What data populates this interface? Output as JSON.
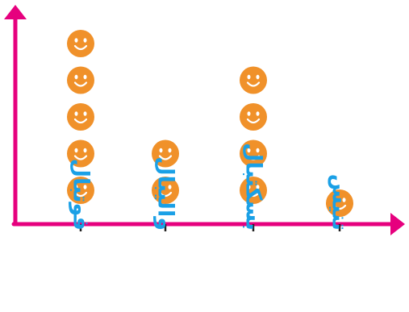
{
  "chart_data": {
    "type": "pictograph",
    "title": "",
    "xlabel": "",
    "ylabel": "",
    "categories": [
      "فوتبال",
      "والیبال",
      "بسکتبال",
      "تنیس"
    ],
    "values": [
      5,
      2,
      4,
      1
    ],
    "icon": "smiley-face-icon",
    "grid": false,
    "legend": "none",
    "colors": {
      "axis": "#e6007e",
      "icon_fill": "#f0912a",
      "icon_features": "#ffffff",
      "label": "#1aa0e6",
      "tick": "#222222"
    }
  }
}
